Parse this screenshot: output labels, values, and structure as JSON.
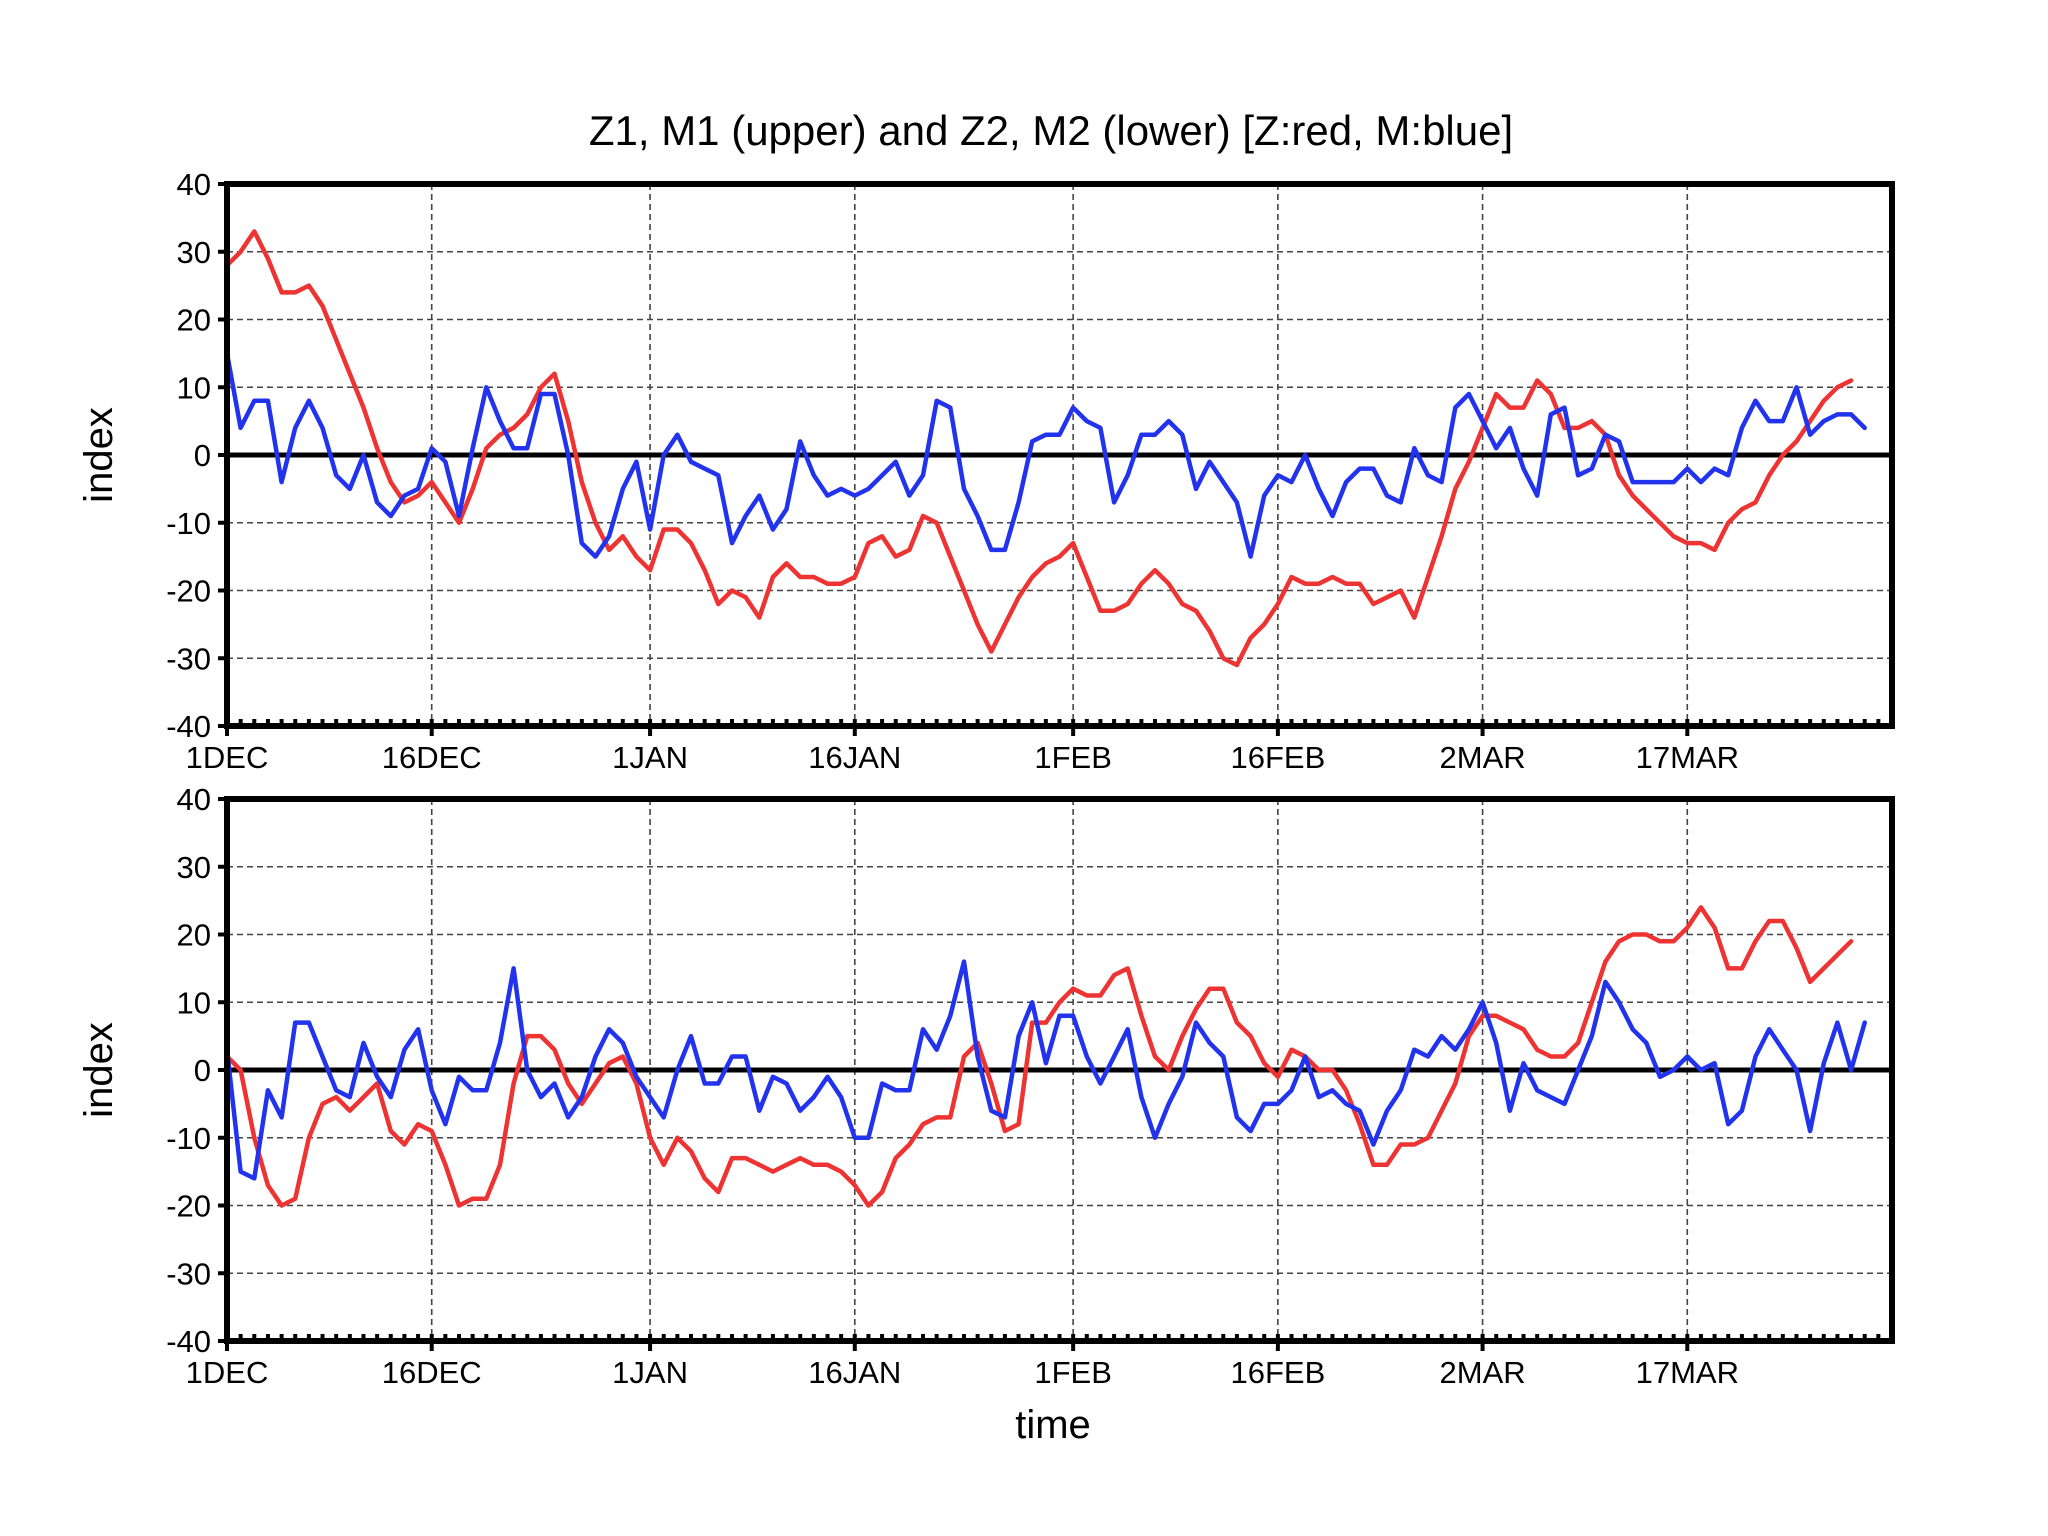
{
  "title": "Z1, M1 (upper) and Z2, M2 (lower) [Z:red, M:blue]",
  "xlabel": "time",
  "chart_data": [
    {
      "type": "line",
      "ylabel": "index",
      "ylim": [
        -40,
        40
      ],
      "yticks": [
        40,
        30,
        20,
        10,
        0,
        -10,
        -20,
        -30,
        -40
      ],
      "x_unit": "day",
      "x_start": "1DEC",
      "xlim": [
        0,
        122
      ],
      "xticks": [
        {
          "x": 0,
          "label": "1DEC"
        },
        {
          "x": 15,
          "label": "16DEC"
        },
        {
          "x": 31,
          "label": "1JAN"
        },
        {
          "x": 46,
          "label": "16JAN"
        },
        {
          "x": 62,
          "label": "1FEB"
        },
        {
          "x": 77,
          "label": "16FEB"
        },
        {
          "x": 92,
          "label": "2MAR"
        },
        {
          "x": 107,
          "label": "17MAR"
        }
      ],
      "grid": true,
      "series": [
        {
          "key": "Z1",
          "color": "#ee3333",
          "values": [
            28,
            30,
            33,
            29,
            24,
            24,
            25,
            22,
            17,
            12,
            7,
            1,
            -4,
            -7,
            -6,
            -4,
            -7,
            -10,
            -5,
            1,
            3,
            4,
            6,
            10,
            12,
            5,
            -4,
            -10,
            -14,
            -12,
            -15,
            -17,
            -11,
            -11,
            -13,
            -17,
            -22,
            -20,
            -21,
            -24,
            -18,
            -16,
            -18,
            -18,
            -19,
            -19,
            -18,
            -13,
            -12,
            -15,
            -14,
            -9,
            -10,
            -15,
            -20,
            -25,
            -29,
            -25,
            -21,
            -18,
            -16,
            -15,
            -13,
            -18,
            -23,
            -23,
            -22,
            -19,
            -17,
            -19,
            -22,
            -23,
            -26,
            -30,
            -31,
            -27,
            -25,
            -22,
            -18,
            -19,
            -19,
            -18,
            -19,
            -19,
            -22,
            -21,
            -20,
            -24,
            -18,
            -12,
            -5,
            -1,
            4,
            9,
            7,
            7,
            11,
            9,
            4,
            4,
            5,
            3,
            -3,
            -6,
            -8,
            -10,
            -12,
            -13,
            -13,
            -14,
            -10,
            -8,
            -7,
            -3,
            0,
            2,
            5,
            8,
            10,
            11
          ]
        },
        {
          "key": "M1",
          "color": "#2233ee",
          "values": [
            15,
            4,
            8,
            8,
            -4,
            4,
            8,
            4,
            -3,
            -5,
            0,
            -7,
            -9,
            -6,
            -5,
            1,
            -1,
            -9,
            1,
            10,
            5,
            1,
            1,
            9,
            9,
            0,
            -13,
            -15,
            -12,
            -5,
            -1,
            -11,
            0,
            3,
            -1,
            -2,
            -3,
            -13,
            -9,
            -6,
            -11,
            -8,
            2,
            -3,
            -6,
            -5,
            -6,
            -5,
            -3,
            -1,
            -6,
            -3,
            8,
            7,
            -5,
            -9,
            -14,
            -14,
            -7,
            2,
            3,
            3,
            7,
            5,
            4,
            -7,
            -3,
            3,
            3,
            5,
            3,
            -5,
            -1,
            -4,
            -7,
            -15,
            -6,
            -3,
            -4,
            0,
            -5,
            -9,
            -4,
            -2,
            -2,
            -6,
            -7,
            1,
            -3,
            -4,
            7,
            9,
            5,
            1,
            4,
            -2,
            -6,
            6,
            7,
            -3,
            -2,
            3,
            2,
            -4,
            -4,
            -4,
            -4,
            -2,
            -4,
            -2,
            -3,
            4,
            8,
            5,
            5,
            10,
            3,
            5,
            6,
            6,
            4
          ]
        }
      ]
    },
    {
      "type": "line",
      "ylabel": "index",
      "ylim": [
        -40,
        40
      ],
      "yticks": [
        40,
        30,
        20,
        10,
        0,
        -10,
        -20,
        -30,
        -40
      ],
      "x_unit": "day",
      "x_start": "1DEC",
      "xlim": [
        0,
        122
      ],
      "xticks": [
        {
          "x": 0,
          "label": "1DEC"
        },
        {
          "x": 15,
          "label": "16DEC"
        },
        {
          "x": 31,
          "label": "1JAN"
        },
        {
          "x": 46,
          "label": "16JAN"
        },
        {
          "x": 62,
          "label": "1FEB"
        },
        {
          "x": 77,
          "label": "16FEB"
        },
        {
          "x": 92,
          "label": "2MAR"
        },
        {
          "x": 107,
          "label": "17MAR"
        }
      ],
      "grid": true,
      "series": [
        {
          "key": "Z2",
          "color": "#ee3333",
          "values": [
            2,
            0,
            -10,
            -17,
            -20,
            -19,
            -10,
            -5,
            -4,
            -6,
            -4,
            -2,
            -9,
            -11,
            -8,
            -9,
            -14,
            -20,
            -19,
            -19,
            -14,
            -2,
            5,
            5,
            3,
            -2,
            -5,
            -2,
            1,
            2,
            -2,
            -10,
            -14,
            -10,
            -12,
            -16,
            -18,
            -13,
            -13,
            -14,
            -15,
            -14,
            -13,
            -14,
            -14,
            -15,
            -17,
            -20,
            -18,
            -13,
            -11,
            -8,
            -7,
            -7,
            2,
            4,
            -2,
            -9,
            -8,
            7,
            7,
            10,
            12,
            11,
            11,
            14,
            15,
            8,
            2,
            0,
            5,
            9,
            12,
            12,
            7,
            5,
            1,
            -1,
            3,
            2,
            0,
            0,
            -3,
            -8,
            -14,
            -14,
            -11,
            -11,
            -10,
            -6,
            -2,
            5,
            8,
            8,
            7,
            6,
            3,
            2,
            2,
            4,
            10,
            16,
            19,
            20,
            20,
            19,
            19,
            21,
            24,
            21,
            15,
            15,
            19,
            22,
            22,
            18,
            13,
            15,
            17,
            19
          ]
        },
        {
          "key": "M2",
          "color": "#2233ee",
          "values": [
            3,
            -15,
            -16,
            -3,
            -7,
            7,
            7,
            2,
            -3,
            -4,
            4,
            -1,
            -4,
            3,
            6,
            -3,
            -8,
            -1,
            -3,
            -3,
            4,
            15,
            0,
            -4,
            -2,
            -7,
            -4,
            2,
            6,
            4,
            -1,
            -4,
            -7,
            0,
            5,
            -2,
            -2,
            2,
            2,
            -6,
            -1,
            -2,
            -6,
            -4,
            -1,
            -4,
            -10,
            -10,
            -2,
            -3,
            -3,
            6,
            3,
            8,
            16,
            2,
            -6,
            -7,
            5,
            10,
            1,
            8,
            8,
            2,
            -2,
            2,
            6,
            -4,
            -10,
            -5,
            -1,
            7,
            4,
            2,
            -7,
            -9,
            -5,
            -5,
            -3,
            2,
            -4,
            -3,
            -5,
            -6,
            -11,
            -6,
            -3,
            3,
            2,
            5,
            3,
            6,
            10,
            4,
            -6,
            1,
            -3,
            -4,
            -5,
            0,
            5,
            13,
            10,
            6,
            4,
            -1,
            0,
            2,
            0,
            1,
            -8,
            -6,
            2,
            6,
            3,
            0,
            -9,
            1,
            7,
            0,
            7
          ]
        }
      ]
    }
  ]
}
